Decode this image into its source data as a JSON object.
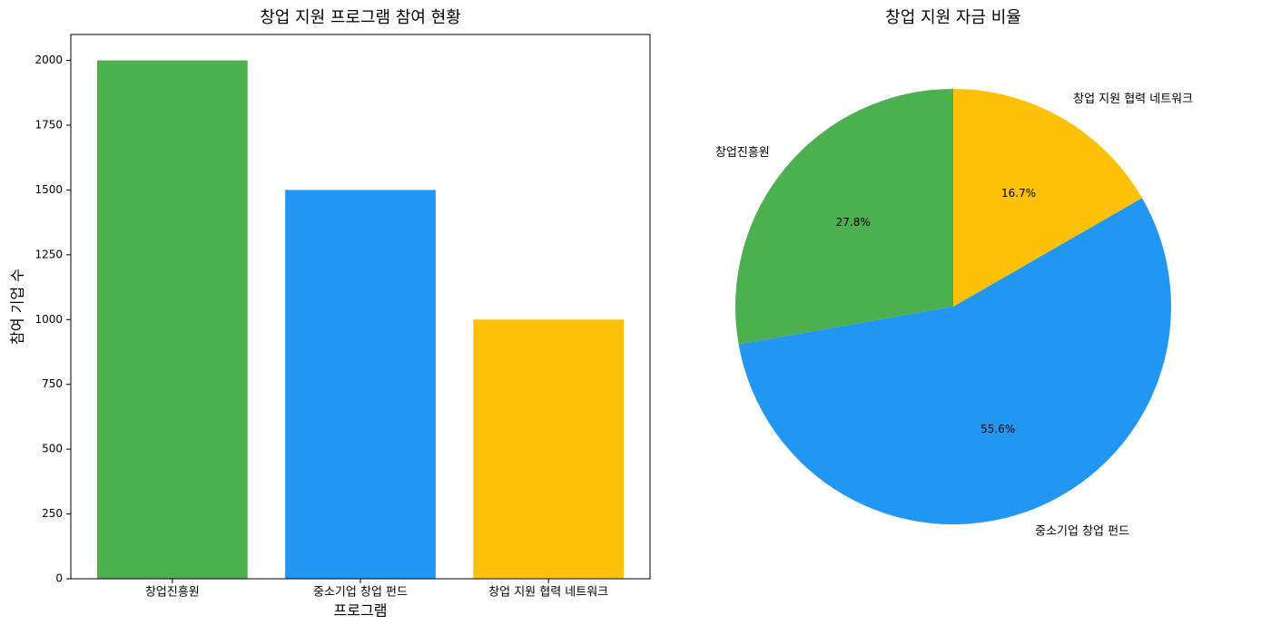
{
  "chart_data": [
    {
      "type": "bar",
      "title": "창업 지원 프로그램 참여 현황",
      "categories": [
        "창업진흥원",
        "중소기업 창업 펀드",
        "창업 지원 협력 네트워크"
      ],
      "values": [
        2000,
        1500,
        1000
      ],
      "colors": [
        "#4caf50",
        "#2196f3",
        "#ffc107"
      ],
      "xlabel": "프로그램",
      "ylabel": "참여 기업 수",
      "ylim": [
        0,
        2100
      ],
      "yticks": [
        0,
        250,
        500,
        750,
        1000,
        1250,
        1500,
        1750,
        2000
      ]
    },
    {
      "type": "pie",
      "title": "창업 지원 자금 비율",
      "categories": [
        "창업진흥원",
        "중소기업 창업 펀드",
        "창업 지원 협력 네트워크"
      ],
      "values": [
        27.8,
        55.6,
        16.7
      ],
      "value_labels": [
        "27.8%",
        "55.6%",
        "16.7%"
      ],
      "colors": [
        "#4caf50",
        "#2196f3",
        "#ffc107"
      ]
    }
  ]
}
